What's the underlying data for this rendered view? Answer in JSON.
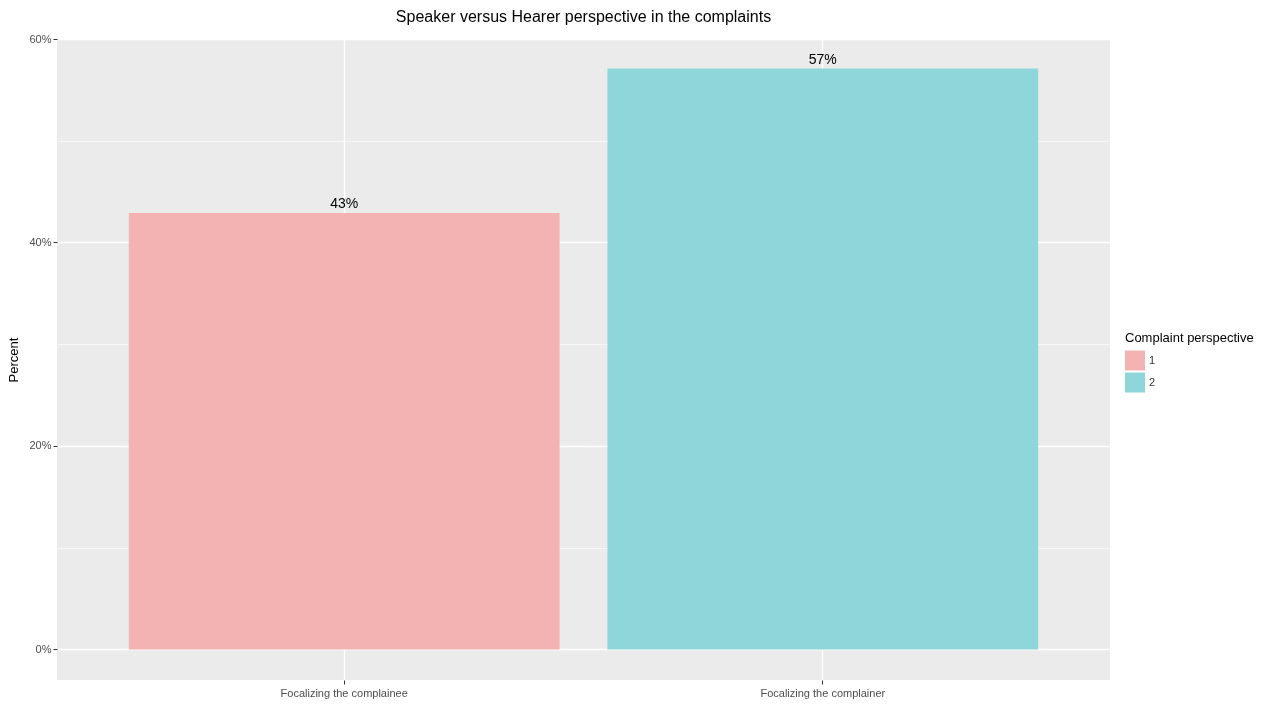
{
  "chart_data": {
    "type": "bar",
    "title": "Speaker versus Hearer perspective in the complaints",
    "ylabel": "Percent",
    "legend_title": "Complaint perspective",
    "categories": [
      "Focalizing the complainee",
      "Focalizing the complainer"
    ],
    "series": [
      {
        "name": "1",
        "color": "#f2b3b2",
        "values": [
          42.9,
          null
        ],
        "value_labels": [
          "43%",
          null
        ]
      },
      {
        "name": "2",
        "color": "#8fd6db",
        "values": [
          null,
          57.1
        ],
        "value_labels": [
          null,
          "57%"
        ]
      }
    ],
    "stacked": true,
    "ylim": [
      -3,
      60
    ],
    "yticks": [
      {
        "value": 0,
        "label": "0%"
      },
      {
        "value": 10,
        "label": null
      },
      {
        "value": 20,
        "label": "20%"
      },
      {
        "value": 30,
        "label": null
      },
      {
        "value": 40,
        "label": "40%"
      },
      {
        "value": 50,
        "label": null
      },
      {
        "value": 60,
        "label": "60%"
      }
    ],
    "grid": true,
    "legend": "right"
  }
}
